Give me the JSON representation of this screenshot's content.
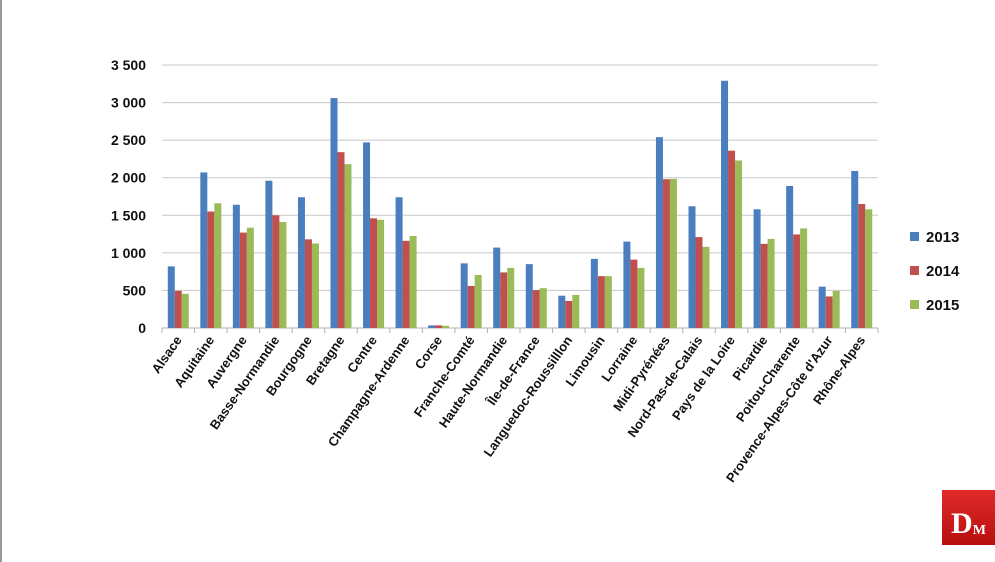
{
  "chart_data": {
    "type": "bar",
    "title": "",
    "xlabel": "",
    "ylabel": "",
    "ylim": [
      0,
      3500
    ],
    "yticks": [
      0,
      500,
      1000,
      1500,
      2000,
      2500,
      3000,
      3500
    ],
    "ytick_labels": [
      "0",
      "500",
      "1 000",
      "1 500",
      "2 000",
      "2 500",
      "3 000",
      "3 500"
    ],
    "grid": true,
    "legend_position": "right",
    "categories": [
      "Alsace",
      "Aquitaine",
      "Auvergne",
      "Basse-Normandie",
      "Bourgogne",
      "Bretagne",
      "Centre",
      "Champagne-Ardenne",
      "Corse",
      "Franche-Comté",
      "Haute-Normandie",
      "Île-de-France",
      "Languedoc-Roussilllon",
      "Limousin",
      "Lorraine",
      "Midi-Pyrénées",
      "Nord-Pas-de-Calais",
      "Pays de la Loire",
      "Picardie",
      "Poitou-Charente",
      "Provence-Alpes-Côte d'Azur",
      "Rhône-Alpes"
    ],
    "series": [
      {
        "name": "2013",
        "color": "#4a7ebf",
        "values": [
          820,
          2070,
          1640,
          1960,
          1740,
          3060,
          2470,
          1740,
          35,
          860,
          1070,
          850,
          430,
          920,
          1150,
          2540,
          1620,
          3290,
          1580,
          1890,
          550,
          2090
        ]
      },
      {
        "name": "2014",
        "color": "#c0504d",
        "values": [
          495,
          1550,
          1270,
          1500,
          1180,
          2340,
          1460,
          1160,
          35,
          560,
          740,
          505,
          360,
          690,
          910,
          1980,
          1210,
          2360,
          1120,
          1245,
          420,
          1650
        ]
      },
      {
        "name": "2015",
        "color": "#9bbb59",
        "values": [
          455,
          1660,
          1335,
          1410,
          1125,
          2180,
          1440,
          1225,
          30,
          705,
          800,
          530,
          440,
          690,
          800,
          1985,
          1080,
          2230,
          1185,
          1325,
          495,
          1580
        ]
      }
    ]
  },
  "logo": {
    "text_large": "D",
    "text_small": "M"
  }
}
